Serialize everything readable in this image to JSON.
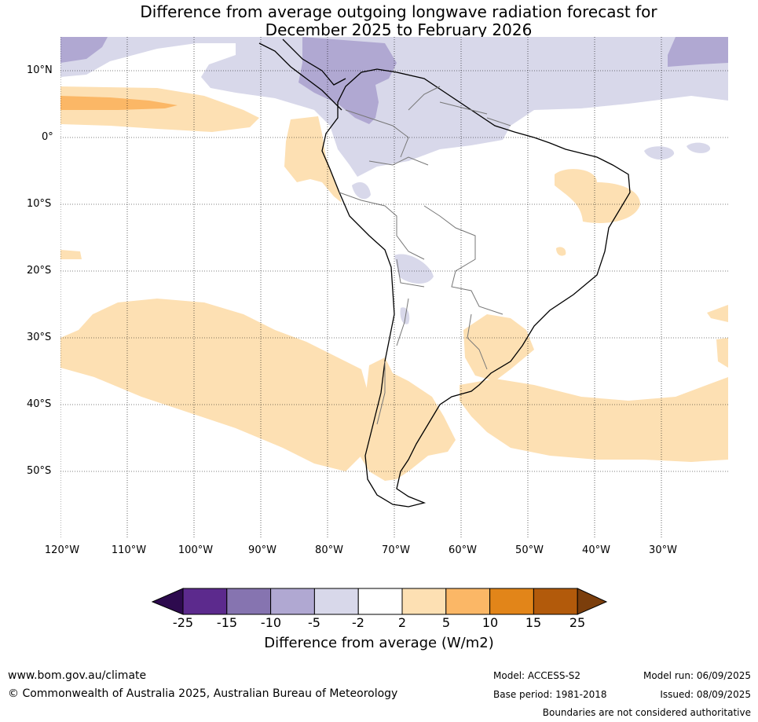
{
  "title_line1": "Difference from average outgoing longwave radiation forecast for",
  "title_line2": "December 2025 to February 2026",
  "map": {
    "lat_labels": [
      "10°N",
      "0°",
      "10°S",
      "20°S",
      "30°S",
      "40°S",
      "50°S"
    ],
    "lon_labels": [
      "120°W",
      "110°W",
      "100°W",
      "90°W",
      "80°W",
      "70°W",
      "60°W",
      "50°W",
      "40°W",
      "30°W"
    ]
  },
  "colorbar": {
    "title": "Difference from average (W/m2)",
    "tick_labels": [
      "-25",
      "-15",
      "-10",
      "-5",
      "-2",
      "2",
      "5",
      "10",
      "15",
      "25"
    ],
    "colors": [
      "#2d0a4e",
      "#5c2a8d",
      "#8674b0",
      "#b0a8d2",
      "#d8d8ea",
      "#ffffff",
      "#fde0b3",
      "#fbb766",
      "#e28519",
      "#b25a0b",
      "#7b3e0c"
    ]
  },
  "footer": {
    "website": "www.bom.gov.au/climate",
    "copyright": "© Commonwealth of Australia 2025, Australian Bureau of Meteorology",
    "model": "Model: ACCESS-S2",
    "base_period": "Base period: 1981-2018",
    "model_run": "Model run: 06/09/2025",
    "issued": "Issued: 08/09/2025",
    "disclaimer": "Boundaries are not considered authoritative"
  }
}
